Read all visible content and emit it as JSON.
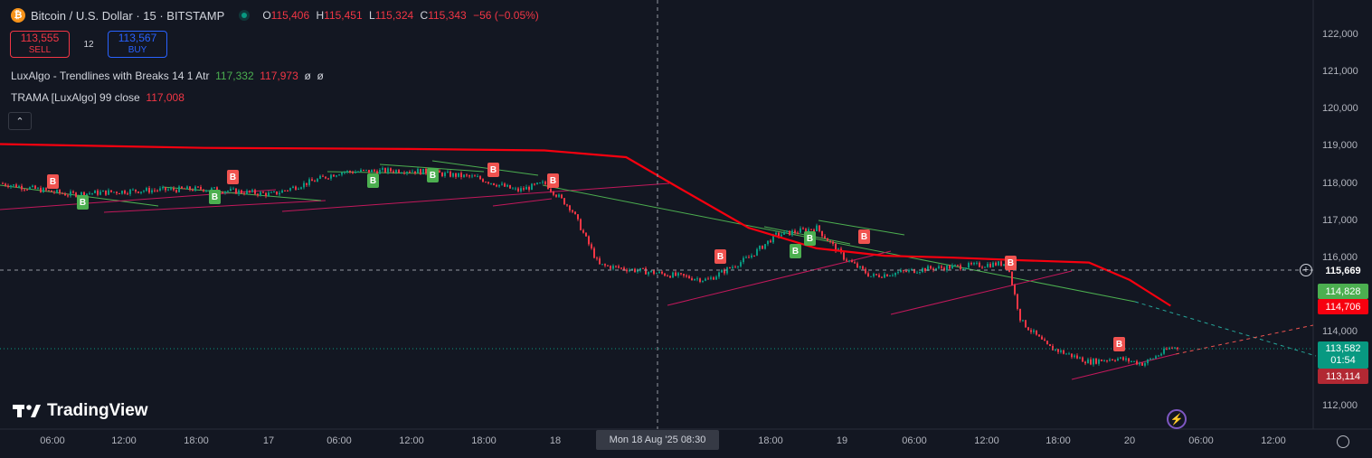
{
  "header": {
    "coin_glyph": "₿",
    "title": "Bitcoin / U.S. Dollar · 15 · BITSTAMP",
    "ohlc": {
      "o_label": "O",
      "o": "115,406",
      "h_label": "H",
      "h": "115,451",
      "l_label": "L",
      "l": "115,324",
      "c_label": "C",
      "c": "115,343",
      "change": "−56 (−0.05%)"
    }
  },
  "trade": {
    "sell_price": "113,555",
    "sell_label": "SELL",
    "spread": "12",
    "buy_price": "113,567",
    "buy_label": "BUY"
  },
  "indicators": [
    {
      "name": "LuxAlgo - Trendlines with Breaks 14 1 Atr",
      "v1": "117,332",
      "v2": "117,973",
      "v3": "ø",
      "v4": "ø"
    },
    {
      "name": "TRAMA [LuxAlgo] 99 close",
      "v1": "117,008"
    }
  ],
  "collapse_icon": "⌃",
  "y_axis": [
    "122,000",
    "121,000",
    "120,000",
    "119,000",
    "118,000",
    "117,000",
    "116,000",
    "114,000",
    "112,000"
  ],
  "price_labels": {
    "crosshair": "115,669",
    "upper_trend": "114,828",
    "trama": "114,706",
    "last": "113,582",
    "countdown": "01:54",
    "lower_trend": "113,114"
  },
  "x_axis": [
    "06:00",
    "12:00",
    "18:00",
    "17",
    "06:00",
    "12:00",
    "18:00",
    "18",
    "18:00",
    "19",
    "06:00",
    "12:00",
    "18:00",
    "20",
    "06:00",
    "12:00"
  ],
  "crosshair_date": "Mon 18 Aug '25   08:30",
  "brand": "TradingView",
  "signal_letter": "B",
  "colors": {
    "bg": "#131722",
    "up": "#089981",
    "down": "#f23645",
    "trama": "#f7000f",
    "buy_signal": "#4caf50",
    "sell_signal": "#f05350",
    "upper_trend": "#4caf50",
    "lower_trend": "#c2185b"
  },
  "chart_data": {
    "type": "line",
    "symbol": "Bitcoin / U.S. Dollar",
    "interval": "15",
    "ylim": [
      111700,
      122400
    ],
    "trama_series": [
      [
        0,
        119050
      ],
      [
        0.15,
        118950
      ],
      [
        0.3,
        118920
      ],
      [
        0.4,
        118880
      ],
      [
        0.46,
        118700
      ],
      [
        0.5,
        117850
      ],
      [
        0.55,
        116800
      ],
      [
        0.6,
        116250
      ],
      [
        0.65,
        116050
      ],
      [
        0.7,
        116000
      ],
      [
        0.75,
        115930
      ],
      [
        0.8,
        115870
      ],
      [
        0.83,
        115400
      ],
      [
        0.86,
        114706
      ]
    ],
    "price_path": [
      [
        0,
        118000
      ],
      [
        0.05,
        117700
      ],
      [
        0.1,
        117800
      ],
      [
        0.15,
        117850
      ],
      [
        0.2,
        117700
      ],
      [
        0.25,
        118300
      ],
      [
        0.3,
        118350
      ],
      [
        0.35,
        118150
      ],
      [
        0.38,
        117800
      ],
      [
        0.4,
        118000
      ],
      [
        0.42,
        117300
      ],
      [
        0.44,
        115800
      ],
      [
        0.48,
        115600
      ],
      [
        0.52,
        115400
      ],
      [
        0.55,
        116000
      ],
      [
        0.57,
        116600
      ],
      [
        0.6,
        116800
      ],
      [
        0.62,
        116000
      ],
      [
        0.64,
        115500
      ],
      [
        0.68,
        115700
      ],
      [
        0.72,
        115800
      ],
      [
        0.74,
        115850
      ],
      [
        0.75,
        114300
      ],
      [
        0.77,
        113600
      ],
      [
        0.8,
        113200
      ],
      [
        0.82,
        113300
      ],
      [
        0.84,
        113150
      ],
      [
        0.86,
        113582
      ]
    ]
  }
}
